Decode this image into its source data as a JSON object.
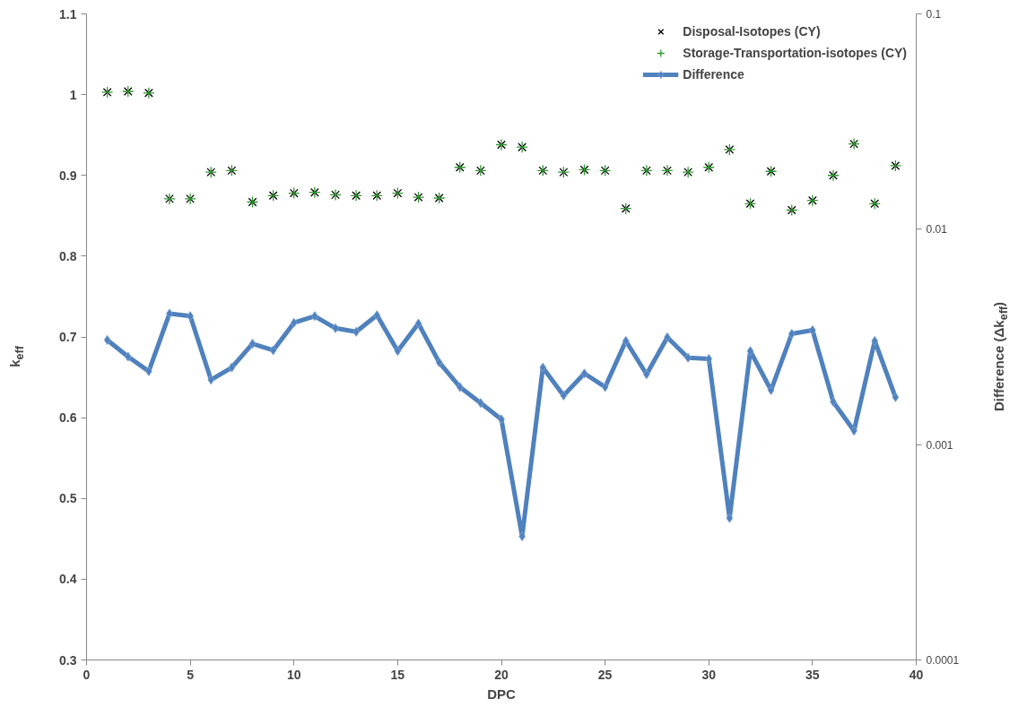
{
  "chart_data": {
    "type": "scatter",
    "xlabel": "DPC",
    "ylabel": "k$_{eff}$",
    "y2label": "Difference (Δk$_{eff}$)",
    "x": [
      1,
      2,
      3,
      4,
      5,
      6,
      7,
      8,
      9,
      10,
      11,
      12,
      13,
      14,
      15,
      16,
      17,
      18,
      19,
      20,
      21,
      22,
      23,
      24,
      25,
      26,
      27,
      28,
      29,
      30,
      31,
      32,
      33,
      34,
      35,
      36,
      37,
      38,
      39
    ],
    "series": [
      {
        "name": "Disposal-Isotopes (CY)",
        "type": "scatter",
        "marker": "x",
        "color": "#000000",
        "values": [
          1.003,
          1.004,
          1.002,
          0.871,
          0.871,
          0.904,
          0.906,
          0.867,
          0.875,
          0.878,
          0.879,
          0.876,
          0.875,
          0.875,
          0.878,
          0.873,
          0.872,
          0.91,
          0.906,
          0.938,
          0.935,
          0.906,
          0.904,
          0.907,
          0.906,
          0.859,
          0.906,
          0.906,
          0.904,
          0.91,
          0.932,
          0.865,
          0.905,
          0.857,
          0.869,
          0.9,
          0.939,
          0.865,
          0.912
        ]
      },
      {
        "name": "Storage-Transportation-isotopes (CY)",
        "type": "scatter",
        "marker": "cross",
        "color": "#2e9a2e",
        "values": [
          1.003,
          1.004,
          1.002,
          0.871,
          0.871,
          0.904,
          0.906,
          0.867,
          0.875,
          0.878,
          0.879,
          0.876,
          0.875,
          0.875,
          0.878,
          0.873,
          0.872,
          0.91,
          0.906,
          0.938,
          0.935,
          0.906,
          0.904,
          0.907,
          0.906,
          0.859,
          0.906,
          0.906,
          0.904,
          0.91,
          0.932,
          0.865,
          0.905,
          0.857,
          0.869,
          0.9,
          0.939,
          0.865,
          0.912
        ]
      },
      {
        "name": "Difference",
        "type": "line",
        "axis": "y2",
        "marker": "diamond",
        "line_style": "solid",
        "color": "#4f81bd",
        "values": [
          0.00306,
          0.00256,
          0.00219,
          0.00406,
          0.00395,
          0.002,
          0.00228,
          0.00294,
          0.00274,
          0.00368,
          0.00395,
          0.00347,
          0.00334,
          0.00399,
          0.00272,
          0.00365,
          0.00241,
          0.00185,
          0.00156,
          0.00131,
          0.000375,
          0.00228,
          0.00169,
          0.00214,
          0.00185,
          0.00303,
          0.00212,
          0.00315,
          0.00253,
          0.0025,
          0.000456,
          0.00272,
          0.00179,
          0.00327,
          0.0034,
          0.00158,
          0.00116,
          0.00303,
          0.00166
        ]
      }
    ],
    "xlim": [
      0,
      40
    ],
    "xticks": [
      0,
      5,
      10,
      15,
      20,
      25,
      30,
      35,
      40
    ],
    "ylim": [
      0.3,
      1.1
    ],
    "yticks": [
      0.3,
      0.4,
      0.5,
      0.6,
      0.7,
      0.8,
      0.9,
      1,
      1.1
    ],
    "y2lim": [
      0.0001,
      0.1
    ],
    "y2ticks": [
      0.0001,
      0.001,
      0.01,
      0.1
    ],
    "log": "y2",
    "grid": false,
    "legend": "top right"
  }
}
